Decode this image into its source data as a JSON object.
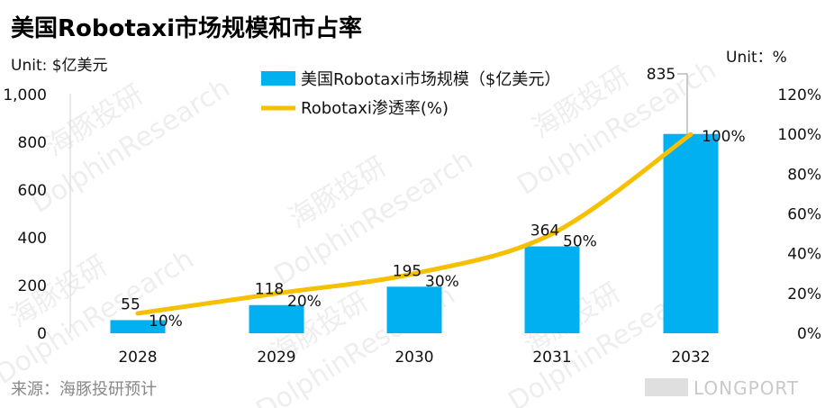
{
  "chart_data": {
    "type": "bar+line",
    "title": "美国Robotaxi市场规模和市占率",
    "left_unit_label": "Unit: $亿美元",
    "right_unit_label": "Unit：%",
    "categories": [
      "2028",
      "2029",
      "2030",
      "2031",
      "2032"
    ],
    "series": [
      {
        "name": "美国Robotaxi市场规模（$亿美元）",
        "type": "bar",
        "axis": "left",
        "color": "#00B0F0",
        "values": [
          55,
          118,
          195,
          364,
          835
        ],
        "labels": [
          "55",
          "118",
          "195",
          "364",
          "835"
        ]
      },
      {
        "name": "Robotaxi渗透率(%)",
        "type": "line",
        "axis": "right",
        "color": "#F5C000",
        "values": [
          10,
          20,
          30,
          50,
          100
        ],
        "labels": [
          "10%",
          "20%",
          "30%",
          "50%",
          "100%"
        ]
      }
    ],
    "y_left": {
      "min": 0,
      "max": 1000,
      "ticks": [
        "0",
        "200",
        "400",
        "600",
        "800",
        "1,000"
      ]
    },
    "y_right": {
      "min": 0,
      "max": 120,
      "ticks": [
        "0%",
        "20%",
        "40%",
        "60%",
        "80%",
        "100%",
        "120%"
      ]
    },
    "legend_position": "top-center",
    "grid": false
  },
  "footer": {
    "source": "来源：海豚投研预计",
    "brand": "LONGPORT"
  },
  "watermark": {
    "text_cn": "海豚投研",
    "text_en": "DolphinResearch"
  }
}
